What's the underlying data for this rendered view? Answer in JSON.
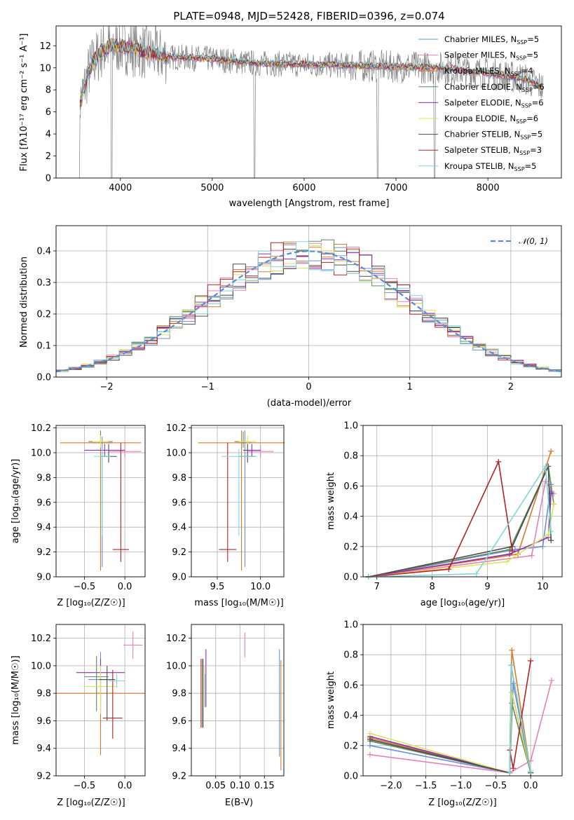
{
  "colors": [
    "#6b8fd6",
    "#e481b9",
    "#d97a2a",
    "#5e8a5e",
    "#8b2fb5",
    "#d8e35a",
    "#4c4c4c",
    "#b22222",
    "#7fd6dc"
  ],
  "spectrum": {
    "title": "PLATE=0948, MJD=52428, FIBERID=0396, z=0.074",
    "xlabel": "wavelength [Angstrom, rest frame]",
    "ylabel": "Flux [fλ10⁻¹⁷ erg cm⁻² s⁻¹ A⁻¹]",
    "xticks": [
      "4000",
      "5000",
      "6000",
      "7000",
      "8000"
    ],
    "yticks": [
      "0",
      "2",
      "4",
      "6",
      "8",
      "10",
      "12"
    ],
    "legend": [
      {
        "name": "Chabrier MILES, N",
        "sub": "SSP",
        "tail": "=5"
      },
      {
        "name": "Salpeter MILES, N",
        "sub": "SSP",
        "tail": "=5"
      },
      {
        "name": "Kroupa MILES, N",
        "sub": "SSP",
        "tail": "=4"
      },
      {
        "name": "Chabrier ELODIE, N",
        "sub": "SSP",
        "tail": "=6"
      },
      {
        "name": "Salpeter ELODIE, N",
        "sub": "SSP",
        "tail": "=6"
      },
      {
        "name": "Kroupa ELODIE, N",
        "sub": "SSP",
        "tail": "=6"
      },
      {
        "name": "Chabrier STELIB, N",
        "sub": "SSP",
        "tail": "=5"
      },
      {
        "name": "Salpeter STELIB, N",
        "sub": "SSP",
        "tail": "=3"
      },
      {
        "name": "Kroupa STELIB, N",
        "sub": "SSP",
        "tail": "=5"
      }
    ]
  },
  "histogram": {
    "xlabel": "(data-model)/error",
    "ylabel": "Normed distribution",
    "xticks": [
      "−2",
      "−1",
      "0",
      "1",
      "2"
    ],
    "yticks": [
      "0.0",
      "0.1",
      "0.2",
      "0.3",
      "0.4"
    ],
    "legend": "𝒩(0, 1)"
  },
  "panels": {
    "age_z": {
      "xlabel": "Z [log₁₀(Z/Z☉)]",
      "ylabel": "age  [log₁₀(age/yr)]",
      "xticks": [
        "−0.5",
        "0.0"
      ],
      "yticks": [
        "9.0",
        "9.2",
        "9.4",
        "9.6",
        "9.8",
        "10.0",
        "10.2"
      ]
    },
    "age_mass": {
      "xlabel": "mass [log₁₀(M/M☉)]",
      "xticks": [
        "9.5",
        "10.0"
      ],
      "yticks": [
        "9.0",
        "9.2",
        "9.4",
        "9.6",
        "9.8",
        "10.0",
        "10.2"
      ]
    },
    "mw_age": {
      "xlabel": "age  [log₁₀(age/yr)]",
      "ylabel": "mass weight",
      "xticks": [
        "7",
        "8",
        "9",
        "10"
      ],
      "yticks": [
        "0.0",
        "0.2",
        "0.4",
        "0.6",
        "0.8",
        "1.0"
      ]
    },
    "mass_z": {
      "xlabel": "Z [log₁₀(Z/Z☉)]",
      "ylabel": "mass [log₁₀(M/M☉)]",
      "xticks": [
        "−0.5",
        "0.0"
      ],
      "yticks": [
        "9.2",
        "9.4",
        "9.6",
        "9.8",
        "10.0",
        "10.2"
      ]
    },
    "mass_ebv": {
      "xlabel": "E(B-V)",
      "xticks": [
        "0.05",
        "0.10",
        "0.15"
      ],
      "yticks": [
        "9.2",
        "9.4",
        "9.6",
        "9.8",
        "10.0",
        "10.2"
      ]
    },
    "mw_z": {
      "xlabel": "Z [log₁₀(Z/Z☉)]",
      "ylabel": "mass weight",
      "xticks": [
        "−2.0",
        "−1.5",
        "−1.0",
        "−0.5",
        "0.0"
      ],
      "yticks": [
        "0.0",
        "0.2",
        "0.4",
        "0.6",
        "0.8",
        "1.0"
      ]
    }
  },
  "chart_data": [
    {
      "type": "line",
      "title": "PLATE=0948, MJD=52428, FIBERID=0396, z=0.074",
      "xlim": [
        3300,
        8800
      ],
      "ylim": [
        0,
        13.8
      ],
      "continuum": {
        "x": [
          3550,
          3650,
          3700,
          3800,
          3900,
          4000,
          4200,
          4500,
          5000,
          5500,
          6000,
          6500,
          7000,
          7500,
          8000,
          8400,
          8600
        ],
        "y": [
          6.5,
          9.5,
          10.5,
          11.5,
          12.0,
          12.0,
          11.6,
          11.0,
          10.8,
          10.4,
          10.3,
          10.2,
          10.1,
          10.0,
          9.5,
          9.0,
          8.2
        ]
      },
      "absorption_dips": [
        {
          "x": 3550,
          "y": 0
        },
        {
          "x": 3905,
          "y": 0
        },
        {
          "x": 5460,
          "y": 0
        },
        {
          "x": 6800,
          "y": 0
        },
        {
          "x": 7420,
          "y": 0
        }
      ],
      "xlabel": "wavelength [Angstrom, rest frame]"
    },
    {
      "type": "histogram",
      "xlim": [
        -2.5,
        2.5
      ],
      "ylim": [
        0,
        0.48
      ],
      "bins": [
        -2.5,
        -2.375,
        -2.25,
        -2.125,
        -2.0,
        -1.875,
        -1.75,
        -1.625,
        -1.5,
        -1.375,
        -1.25,
        -1.125,
        -1.0,
        -0.875,
        -0.75,
        -0.625,
        -0.5,
        -0.375,
        -0.25,
        -0.125,
        0,
        0.125,
        0.25,
        0.375,
        0.5,
        0.625,
        0.75,
        0.875,
        1.0,
        1.125,
        1.25,
        1.375,
        1.5,
        1.625,
        1.75,
        1.875,
        2.0,
        2.125,
        2.25,
        2.375,
        2.5
      ],
      "normal_curve": "N(0,1)",
      "xlabel": "(data-model)/error",
      "ylabel": "Normed distribution"
    },
    {
      "type": "errorbar",
      "name": "age_vs_Z",
      "points": [
        {
          "s": 0,
          "x": -0.28,
          "y": 10.08,
          "xe": 0.12,
          "ye_lo": 1.0,
          "ye_hi": 0.05
        },
        {
          "s": 1,
          "x": 0.0,
          "y": 10.01,
          "xe": 0.2,
          "ye_lo": 0.05,
          "ye_hi": 0.08
        },
        {
          "s": 2,
          "x": -0.3,
          "y": 10.08,
          "xe": 0.5,
          "ye_lo": 1.03,
          "ye_hi": 0.1
        },
        {
          "s": 3,
          "x": -0.3,
          "y": 10.09,
          "xe": 0.15,
          "ye_lo": 0.05,
          "ye_hi": 0.08
        },
        {
          "s": 4,
          "x": -0.25,
          "y": 10.02,
          "xe": 0.25,
          "ye_lo": 0.05,
          "ye_hi": 0.05
        },
        {
          "s": 5,
          "x": -0.3,
          "y": 10.09,
          "xe": 0.1,
          "ye_lo": 0.05,
          "ye_hi": 0.05
        },
        {
          "s": 6,
          "x": -0.2,
          "y": 9.97,
          "xe": 0.1,
          "ye_lo": 0.05,
          "ye_hi": 0.1
        },
        {
          "s": 7,
          "x": -0.05,
          "y": 9.22,
          "xe": 0.1,
          "ye_lo": 0.1,
          "ye_hi": 0.86
        },
        {
          "s": 8,
          "x": -0.28,
          "y": 9.97,
          "xe": 0.1,
          "ye_lo": 0.64,
          "ye_hi": 0.06
        }
      ]
    },
    {
      "type": "errorbar",
      "name": "age_vs_mass",
      "points": [
        {
          "s": 0,
          "x": 9.82,
          "y": 10.08,
          "xe": 0.08,
          "ye_lo": 1.0,
          "ye_hi": 0.1
        },
        {
          "s": 1,
          "x": 10.0,
          "y": 10.01,
          "xe": 0.15,
          "ye_lo": 0.05,
          "ye_hi": 0.05
        },
        {
          "s": 2,
          "x": 9.78,
          "y": 10.08,
          "xe": 0.5,
          "ye_lo": 1.03,
          "ye_hi": 0.1
        },
        {
          "s": 3,
          "x": 9.8,
          "y": 10.09,
          "xe": 0.1,
          "ye_lo": 0.05,
          "ye_hi": 0.08
        },
        {
          "s": 4,
          "x": 9.9,
          "y": 10.02,
          "xe": 0.1,
          "ye_lo": 0.05,
          "ye_hi": 0.05
        },
        {
          "s": 5,
          "x": 9.85,
          "y": 10.09,
          "xe": 0.1,
          "ye_lo": 0.05,
          "ye_hi": 0.05
        },
        {
          "s": 6,
          "x": 9.85,
          "y": 9.97,
          "xe": 0.1,
          "ye_lo": 0.05,
          "ye_hi": 0.1
        },
        {
          "s": 7,
          "x": 9.62,
          "y": 9.22,
          "xe": 0.1,
          "ye_lo": 0.1,
          "ye_hi": 0.86
        },
        {
          "s": 8,
          "x": 9.75,
          "y": 9.97,
          "xe": 0.2,
          "ye_lo": 0.64,
          "ye_hi": 0.06
        }
      ]
    },
    {
      "type": "line",
      "name": "mass_weight_vs_age",
      "series": [
        {
          "s": 0,
          "x": [
            6.85,
            9.5,
            10.0,
            10.15
          ],
          "y": [
            0.0,
            0.18,
            0.2,
            0.61
          ]
        },
        {
          "s": 1,
          "x": [
            6.85,
            9.8,
            10.05,
            10.2
          ],
          "y": [
            0.0,
            0.14,
            0.63,
            0.55
          ]
        },
        {
          "s": 2,
          "x": [
            6.85,
            9.55,
            10.15
          ],
          "y": [
            0.0,
            0.15,
            0.83
          ]
        },
        {
          "s": 3,
          "x": [
            6.85,
            9.4,
            10.1,
            10.2
          ],
          "y": [
            0.0,
            0.18,
            0.73,
            0.48
          ]
        },
        {
          "s": 4,
          "x": [
            6.85,
            9.4,
            10.1,
            10.15
          ],
          "y": [
            0.0,
            0.15,
            0.26,
            0.55
          ]
        },
        {
          "s": 5,
          "x": [
            6.85,
            9.35,
            10.1,
            10.2
          ],
          "y": [
            0.0,
            0.1,
            0.28,
            0.48
          ]
        },
        {
          "s": 6,
          "x": [
            6.85,
            9.45,
            10.1,
            10.15
          ],
          "y": [
            0.0,
            0.2,
            0.73,
            0.24
          ]
        },
        {
          "s": 7,
          "x": [
            6.85,
            8.3,
            9.2,
            9.45
          ],
          "y": [
            0.0,
            0.05,
            0.76,
            0.17
          ]
        },
        {
          "s": 8,
          "x": [
            6.85,
            8.8,
            10.05,
            10.15
          ],
          "y": [
            0.0,
            0.02,
            0.73,
            0.3
          ]
        }
      ]
    },
    {
      "type": "errorbar",
      "name": "mass_vs_Z",
      "points": [
        {
          "s": 0,
          "x": -0.3,
          "y": 9.9,
          "xe": 0.15,
          "ye_lo": 0.3,
          "ye_hi": 0.2
        },
        {
          "s": 1,
          "x": 0.1,
          "y": 10.15,
          "xe": 0.12,
          "ye_lo": 0.1,
          "ye_hi": 0.1
        },
        {
          "s": 2,
          "x": -0.3,
          "y": 9.8,
          "xe": 0.55,
          "ye_lo": 0.45,
          "ye_hi": 0.1
        },
        {
          "s": 3,
          "x": -0.35,
          "y": 9.92,
          "xe": 0.15,
          "ye_lo": 0.25,
          "ye_hi": 0.15
        },
        {
          "s": 4,
          "x": -0.3,
          "y": 9.95,
          "xe": 0.3,
          "ye_lo": 0.2,
          "ye_hi": 0.1
        },
        {
          "s": 5,
          "x": -0.3,
          "y": 9.85,
          "xe": 0.2,
          "ye_lo": 0.2,
          "ye_hi": 0.15
        },
        {
          "s": 6,
          "x": -0.22,
          "y": 9.9,
          "xe": 0.1,
          "ye_lo": 0.3,
          "ye_hi": 0.1
        },
        {
          "s": 7,
          "x": -0.15,
          "y": 9.62,
          "xe": 0.12,
          "ye_lo": 0.15,
          "ye_hi": 0.35
        },
        {
          "s": 8,
          "x": -0.1,
          "y": 9.89,
          "xe": 0.1,
          "ye_lo": 0.05,
          "ye_hi": 0.05
        }
      ]
    },
    {
      "type": "errorbar",
      "name": "mass_vs_EBV",
      "points": [
        {
          "s": 0,
          "x": 0.181,
          "y": 9.72,
          "xe": 0,
          "ye_lo": 0.38,
          "ye_hi": 0.4
        },
        {
          "s": 1,
          "x": 0.11,
          "y": 10.14,
          "xe": 0,
          "ye_lo": 0.08,
          "ye_hi": 0.1
        },
        {
          "s": 2,
          "x": 0.184,
          "y": 9.64,
          "xe": 0,
          "ye_lo": 0.4,
          "ye_hi": 0.4
        },
        {
          "s": 3,
          "x": 0.023,
          "y": 9.8,
          "xe": 0,
          "ye_lo": 0.25,
          "ye_hi": 0.25
        },
        {
          "s": 4,
          "x": 0.03,
          "y": 9.9,
          "xe": 0,
          "ye_lo": 0.2,
          "ye_hi": 0.22
        },
        {
          "s": 5,
          "x": 0.027,
          "y": 9.85,
          "xe": 0,
          "ye_lo": 0.15,
          "ye_hi": 0.15
        },
        {
          "s": 6,
          "x": 0.024,
          "y": 9.8,
          "xe": 0,
          "ye_lo": 0.25,
          "ye_hi": 0.25
        },
        {
          "s": 7,
          "x": 0.02,
          "y": 9.8,
          "xe": 0,
          "ye_lo": 0.25,
          "ye_hi": 0.25
        },
        {
          "s": 8,
          "x": 0.028,
          "y": 9.82,
          "xe": 0,
          "ye_lo": 0.12,
          "ye_hi": 0.12
        }
      ]
    },
    {
      "type": "line",
      "name": "mass_weight_vs_Z",
      "series": [
        {
          "s": 0,
          "x": [
            -2.3,
            -0.3,
            -0.25,
            0.0
          ],
          "y": [
            0.2,
            0.02,
            0.61,
            0.02
          ]
        },
        {
          "s": 1,
          "x": [
            -2.3,
            -0.3,
            0.0,
            0.3
          ],
          "y": [
            0.14,
            0.02,
            0.1,
            0.63
          ]
        },
        {
          "s": 2,
          "x": [
            -2.3,
            -0.3,
            -0.27,
            0.0
          ],
          "y": [
            0.25,
            0.02,
            0.83,
            0.02
          ]
        },
        {
          "s": 3,
          "x": [
            -2.3,
            -0.3,
            -0.27,
            0.0
          ],
          "y": [
            0.23,
            0.02,
            0.48,
            0.02
          ]
        },
        {
          "s": 4,
          "x": [
            -2.3,
            -0.3,
            -0.27,
            0.0
          ],
          "y": [
            0.26,
            0.02,
            0.55,
            0.02
          ]
        },
        {
          "s": 5,
          "x": [
            -2.3,
            -0.3,
            -0.27,
            0.0
          ],
          "y": [
            0.28,
            0.02,
            0.55,
            0.02
          ]
        },
        {
          "s": 6,
          "x": [
            -2.3,
            -0.3,
            -0.28,
            0.0
          ],
          "y": [
            0.24,
            0.02,
            0.73,
            0.02
          ]
        },
        {
          "s": 7,
          "x": [
            -0.3,
            -0.25,
            0.0
          ],
          "y": [
            0.17,
            0.05,
            0.76
          ]
        },
        {
          "s": 8,
          "x": [
            -0.3,
            -0.28,
            0.0
          ],
          "y": [
            0.02,
            0.73,
            0.03
          ]
        }
      ]
    }
  ]
}
